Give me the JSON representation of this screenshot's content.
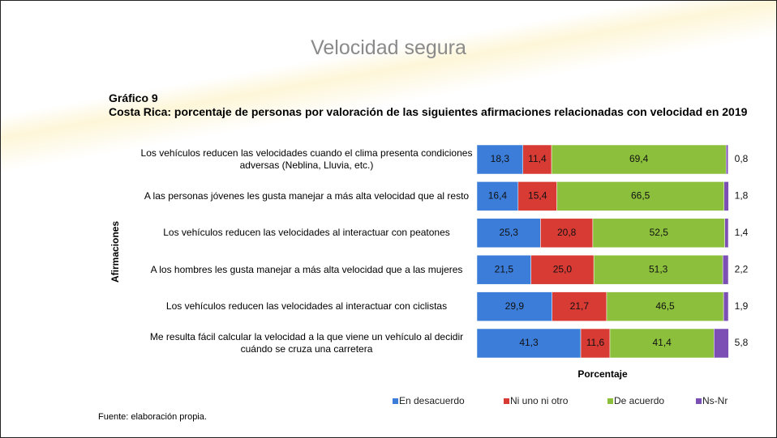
{
  "slide_title": "Velocidad segura",
  "chart_data": {
    "type": "stacked-bar-horizontal",
    "title": "Gráfico 9",
    "subtitle": "Costa Rica: porcentaje de personas por valoración de las siguientes afirmaciones relacionadas con velocidad en 2019",
    "y_label": "Afirmaciones",
    "x_label": "Porcentaje",
    "source": "Fuente: elaboración propia.",
    "categories": [
      "Los vehículos reducen las velocidades cuando el clima presenta condiciones adversas (Neblina, Lluvia, etc.)",
      "A las personas jóvenes les gusta manejar a más alta velocidad que al resto",
      "Los vehículos reducen las velocidades al interactuar con peatones",
      "A los hombres les gusta manejar a más alta velocidad que a las mujeres",
      "Los vehículos reducen las velocidades al interactuar con ciclistas",
      "Me resulta fácil calcular la velocidad a la que viene un vehículo al decidir cuándo se cruza una carretera"
    ],
    "series": [
      {
        "name": "En desacuerdo",
        "color": "#3b7dd8",
        "values": [
          18.3,
          16.4,
          25.3,
          21.5,
          29.9,
          41.3
        ],
        "value_labels": [
          "18,3",
          "16,4",
          "25,3",
          "21,5",
          "29,9",
          "41,3"
        ]
      },
      {
        "name": "Ni uno ni otro",
        "color": "#d83a34",
        "values": [
          11.4,
          15.4,
          20.8,
          25.0,
          21.7,
          11.6
        ],
        "value_labels": [
          "11,4",
          "15,4",
          "20,8",
          "25,0",
          "21,7",
          "11,6"
        ]
      },
      {
        "name": "De acuerdo",
        "color": "#8cc03c",
        "values": [
          69.4,
          66.5,
          52.5,
          51.3,
          46.5,
          41.4
        ],
        "value_labels": [
          "69,4",
          "66,5",
          "52,5",
          "51,3",
          "46,5",
          "41,4"
        ]
      },
      {
        "name": "Ns-Nr",
        "color": "#7b4fb3",
        "values": [
          0.8,
          1.8,
          1.4,
          2.2,
          1.9,
          5.8
        ],
        "value_labels": [
          "0,8",
          "1,8",
          "1,4",
          "2,2",
          "1,9",
          "5,8"
        ]
      }
    ],
    "xlim": [
      0,
      100
    ]
  }
}
